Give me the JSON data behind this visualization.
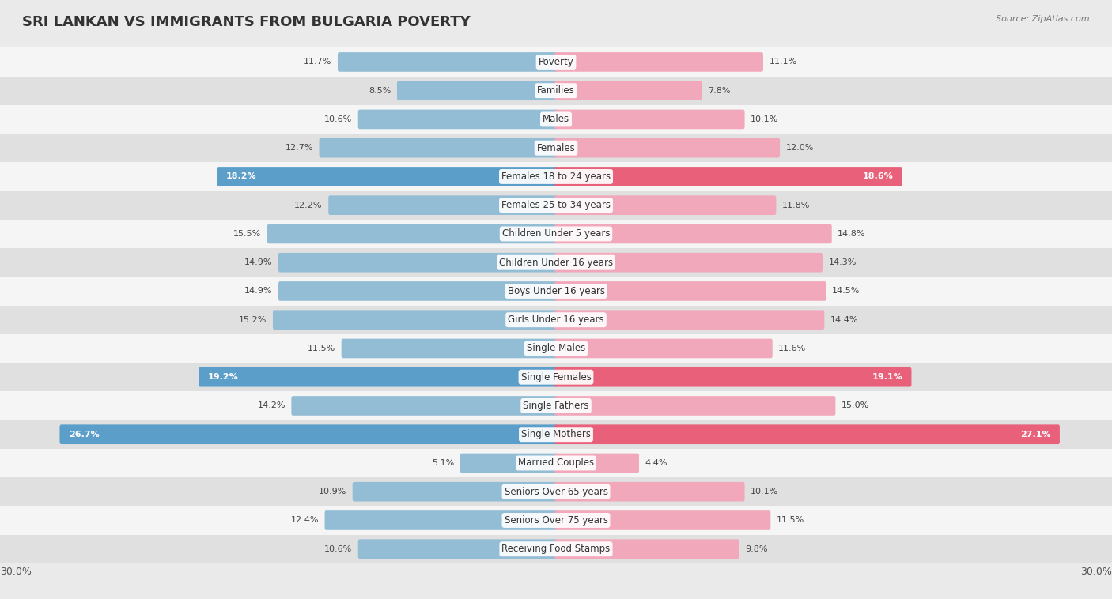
{
  "title": "SRI LANKAN VS IMMIGRANTS FROM BULGARIA POVERTY",
  "source": "Source: ZipAtlas.com",
  "categories": [
    "Poverty",
    "Families",
    "Males",
    "Females",
    "Females 18 to 24 years",
    "Females 25 to 34 years",
    "Children Under 5 years",
    "Children Under 16 years",
    "Boys Under 16 years",
    "Girls Under 16 years",
    "Single Males",
    "Single Females",
    "Single Fathers",
    "Single Mothers",
    "Married Couples",
    "Seniors Over 65 years",
    "Seniors Over 75 years",
    "Receiving Food Stamps"
  ],
  "sri_lankan": [
    11.7,
    8.5,
    10.6,
    12.7,
    18.2,
    12.2,
    15.5,
    14.9,
    14.9,
    15.2,
    11.5,
    19.2,
    14.2,
    26.7,
    5.1,
    10.9,
    12.4,
    10.6
  ],
  "bulgaria": [
    11.1,
    7.8,
    10.1,
    12.0,
    18.6,
    11.8,
    14.8,
    14.3,
    14.5,
    14.4,
    11.6,
    19.1,
    15.0,
    27.1,
    4.4,
    10.1,
    11.5,
    9.8
  ],
  "sri_lankan_color_normal": "#93bdd4",
  "sri_lankan_color_highlight": "#5b9ec9",
  "bulgaria_color_normal": "#f2a8bb",
  "bulgaria_color_highlight": "#e8607a",
  "highlight_threshold": 18.0,
  "max_val": 30.0,
  "bg_color": "#eaeaea",
  "row_even_color": "#f5f5f5",
  "row_odd_color": "#e0e0e0",
  "title_fontsize": 13,
  "label_fontsize": 8.5,
  "value_fontsize": 8,
  "legend_fontsize": 9
}
